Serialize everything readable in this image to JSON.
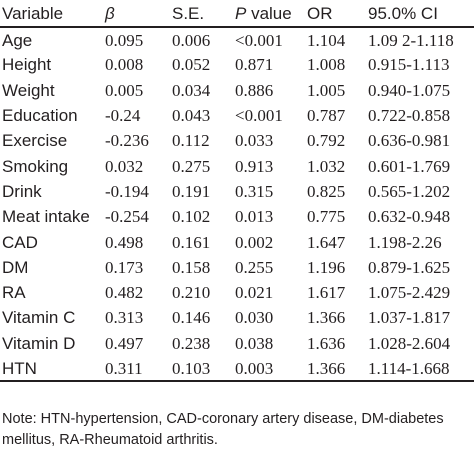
{
  "table": {
    "headers": [
      {
        "label": "Variable",
        "italic": false
      },
      {
        "label": "β",
        "italic": true
      },
      {
        "label": "S.E.",
        "italic": false
      },
      {
        "label": "P value",
        "italic_prefix": "P",
        "suffix": " value"
      },
      {
        "label": "OR",
        "italic": false
      },
      {
        "label": "95.0% CI",
        "italic": false
      }
    ],
    "rows": [
      [
        "Age",
        "0.095",
        "0.006",
        "<0.001",
        "1.104",
        "1.09 2-1.118"
      ],
      [
        "Height",
        "0.008",
        "0.052",
        "0.871",
        "1.008",
        "0.915-1.113"
      ],
      [
        "Weight",
        "0.005",
        "0.034",
        "0.886",
        "1.005",
        "0.940-1.075"
      ],
      [
        "Education",
        "-0.24",
        "0.043",
        "<0.001",
        "0.787",
        "0.722-0.858"
      ],
      [
        "Exercise",
        "-0.236",
        "0.112",
        "0.033",
        "0.792",
        "0.636-0.981"
      ],
      [
        "Smoking",
        "0.032",
        "0.275",
        "0.913",
        "1.032",
        "0.601-1.769"
      ],
      [
        "Drink",
        "-0.194",
        "0.191",
        "0.315",
        "0.825",
        "0.565-1.202"
      ],
      [
        "Meat intake",
        "-0.254",
        "0.102",
        "0.013",
        "0.775",
        "0.632-0.948"
      ],
      [
        "CAD",
        "0.498",
        "0.161",
        "0.002",
        "1.647",
        "1.198-2.26"
      ],
      [
        "DM",
        "0.173",
        "0.158",
        "0.255",
        "1.196",
        "0.879-1.625"
      ],
      [
        "RA",
        "0.482",
        "0.210",
        "0.021",
        "1.617",
        "1.075-2.429"
      ],
      [
        "Vitamin C",
        "0.313",
        "0.146",
        "0.030",
        "1.366",
        "1.037-1.817"
      ],
      [
        "Vitamin D",
        "0.497",
        "0.238",
        "0.038",
        "1.636",
        "1.028-2.604"
      ],
      [
        "HTN",
        "0.311",
        "0.103",
        "0.003",
        "1.366",
        "1.114-1.668"
      ]
    ]
  },
  "note": "Note: HTN-hypertension, CAD-coronary artery disease, DM-diabetes mellitus, RA-Rheumatoid arthritis.",
  "colors": {
    "text": "#231f20",
    "rule": "#231f20",
    "background": "#ffffff"
  }
}
